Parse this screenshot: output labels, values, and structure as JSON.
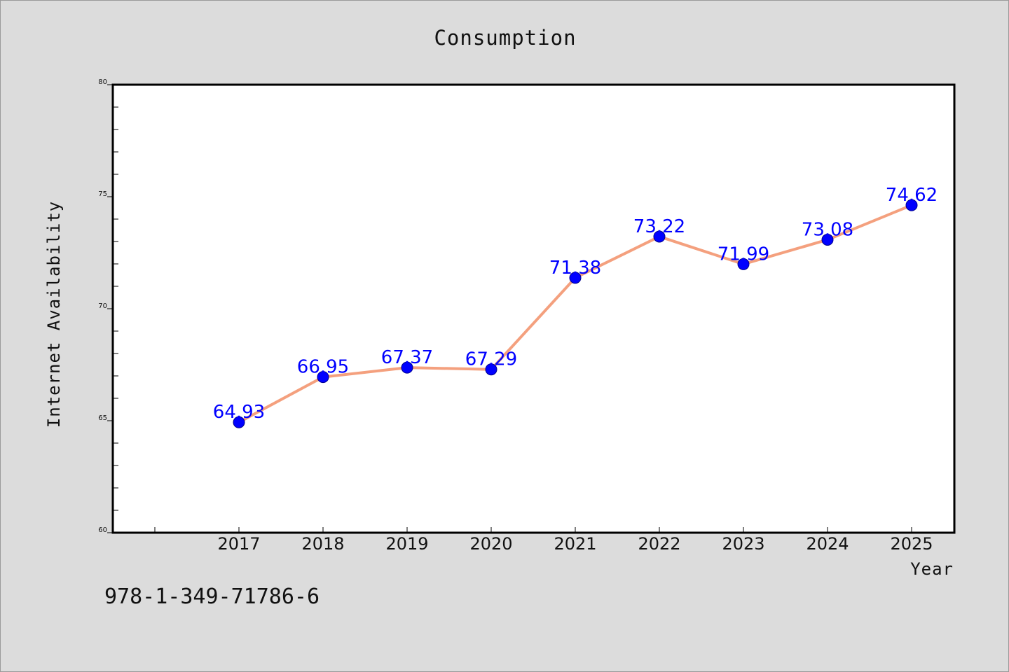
{
  "chart_data": {
    "type": "line",
    "title": "Consumption",
    "xlabel": "Year",
    "ylabel": "Internet Availability",
    "categories": [
      "2017",
      "2018",
      "2019",
      "2020",
      "2021",
      "2022",
      "2023",
      "2024",
      "2025"
    ],
    "series": [
      {
        "values": [
          64.93,
          66.95,
          67.37,
          67.29,
          71.38,
          73.22,
          71.99,
          73.08,
          74.62
        ],
        "data_labels": [
          "64.93",
          "66.95",
          "67.37",
          "67.29",
          "71.38",
          "73.22",
          "71.99",
          "73.08",
          "74.62"
        ],
        "line_color": "#f4a07e",
        "marker_color": "#0000ff"
      }
    ],
    "ylim": [
      60,
      80
    ],
    "yticks": [
      "60",
      "65",
      "70",
      "75",
      "80"
    ],
    "grid": false,
    "legend": "none"
  },
  "footer": {
    "isbn": "978-1-349-71786-6"
  },
  "colors": {
    "background": "#dcdcdc",
    "plot_background": "#ffffff",
    "frame": "#000000"
  }
}
